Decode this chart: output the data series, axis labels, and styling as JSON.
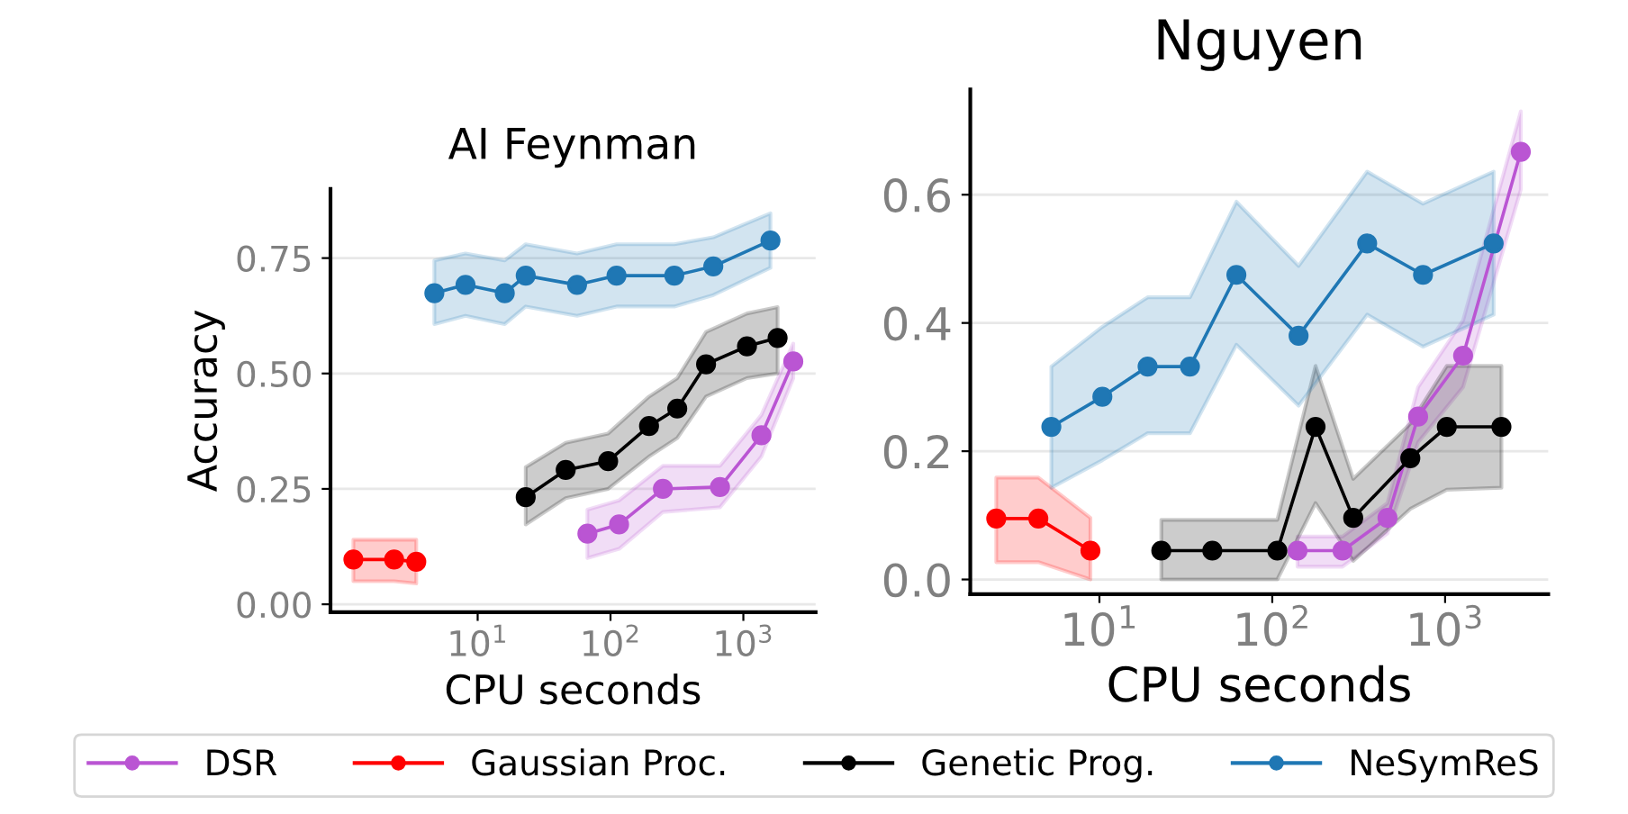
{
  "chart_data": [
    {
      "type": "line",
      "title": "AI Feynman",
      "xlabel": "CPU seconds",
      "ylabel": "Accuracy",
      "log": "x",
      "xlim": [
        0.78,
        3500
      ],
      "ylim": [
        -0.017,
        0.9
      ],
      "xticks": [
        {
          "value": 10,
          "label": "10$^{1}$"
        },
        {
          "value": 100,
          "label": "10$^{2}$"
        },
        {
          "value": 1000,
          "label": "10$^{3}$"
        }
      ],
      "yticks": [
        {
          "value": 0,
          "label": "0.00"
        },
        {
          "value": 0.25,
          "label": "0.25"
        },
        {
          "value": 0.5,
          "label": "0.50"
        },
        {
          "value": 0.75,
          "label": "0.75"
        }
      ],
      "grid": "y",
      "legend": "bottom",
      "marker": "circle",
      "line_style": "solid",
      "series": [
        {
          "name": "DSR",
          "color": "#ba55d3",
          "x": [
            67,
            116,
            248,
            667,
            1368,
            2377
          ],
          "values": [
            0.153,
            0.173,
            0.25,
            0.254,
            0.366,
            0.526
          ],
          "lower": [
            0.1,
            0.12,
            0.2,
            0.21,
            0.32,
            0.49
          ],
          "upper": [
            0.205,
            0.225,
            0.3,
            0.3,
            0.41,
            0.565
          ]
        },
        {
          "name": "Gaussian Proc.",
          "color": "#ff0000",
          "x": [
            1.16,
            2.35,
            3.45
          ],
          "values": [
            0.097,
            0.097,
            0.092
          ],
          "lower": [
            0.05,
            0.05,
            0.045
          ],
          "upper": [
            0.14,
            0.14,
            0.14
          ]
        },
        {
          "name": "Genetic Prog.",
          "color": "#000000",
          "x": [
            23,
            46,
            96,
            195,
            318,
            524,
            1065,
            1811
          ],
          "values": [
            0.232,
            0.291,
            0.31,
            0.386,
            0.424,
            0.52,
            0.559,
            0.577
          ],
          "lower": [
            0.173,
            0.23,
            0.25,
            0.32,
            0.36,
            0.45,
            0.49,
            0.5
          ],
          "upper": [
            0.297,
            0.35,
            0.37,
            0.45,
            0.49,
            0.59,
            0.63,
            0.644
          ]
        },
        {
          "name": "NeSymReS",
          "color": "#1f77b4",
          "x": [
            4.72,
            8.1,
            16,
            23,
            56,
            111,
            302,
            594,
            1600
          ],
          "values": [
            0.674,
            0.692,
            0.674,
            0.712,
            0.692,
            0.712,
            0.712,
            0.732,
            0.788
          ],
          "lower": [
            0.607,
            0.625,
            0.607,
            0.645,
            0.625,
            0.645,
            0.645,
            0.67,
            0.729
          ],
          "upper": [
            0.745,
            0.76,
            0.745,
            0.78,
            0.76,
            0.78,
            0.78,
            0.795,
            0.847
          ]
        }
      ]
    },
    {
      "type": "line",
      "title": "Nguyen",
      "xlabel": "CPU seconds",
      "log": "x",
      "xlim": [
        1.79,
        3950
      ],
      "ylim": [
        -0.023,
        0.764
      ],
      "xticks": [
        {
          "value": 10,
          "label": "10$^{1}$"
        },
        {
          "value": 100,
          "label": "10$^{2}$"
        },
        {
          "value": 1000,
          "label": "10$^{3}$"
        }
      ],
      "yticks": [
        {
          "value": 0,
          "label": "0.0"
        },
        {
          "value": 0.2,
          "label": "0.2"
        },
        {
          "value": 0.4,
          "label": "0.4"
        },
        {
          "value": 0.6,
          "label": "0.6"
        }
      ],
      "grid": "y",
      "marker": "circle",
      "line_style": "solid",
      "series": [
        {
          "color": "#ba55d3",
          "x": [
            140,
            255,
            464,
            698,
            1271,
            2742
          ],
          "values": [
            0.045,
            0.045,
            0.096,
            0.254,
            0.349,
            0.667
          ],
          "lower": [
            0.02,
            0.02,
            0.072,
            0.214,
            0.3,
            0.608
          ],
          "upper": [
            0.067,
            0.067,
            0.119,
            0.3,
            0.404,
            0.73
          ]
        },
        {
          "color": "#ff0000",
          "x": [
            2.53,
            4.43,
            8.87
          ],
          "values": [
            0.095,
            0.095,
            0.045
          ],
          "lower": [
            0.027,
            0.027,
            0
          ],
          "upper": [
            0.159,
            0.159,
            0.096
          ]
        },
        {
          "color": "#000000",
          "x": [
            22.8,
            45,
            107,
            178,
            294,
            629,
            1023,
            2118
          ],
          "values": [
            0.045,
            0.045,
            0.045,
            0.238,
            0.096,
            0.189,
            0.238,
            0.238
          ],
          "lower": [
            0,
            0,
            0,
            0.119,
            0.029,
            0.11,
            0.14,
            0.143
          ],
          "upper": [
            0.093,
            0.093,
            0.093,
            0.333,
            0.157,
            0.243,
            0.333,
            0.333
          ]
        },
        {
          "color": "#1f77b4",
          "x": [
            5.27,
            10.4,
            19,
            33.4,
            62,
            142,
            354,
            745,
            1910
          ],
          "values": [
            0.238,
            0.285,
            0.332,
            0.332,
            0.475,
            0.38,
            0.524,
            0.475,
            0.524
          ],
          "lower": [
            0.143,
            0.186,
            0.228,
            0.228,
            0.366,
            0.271,
            0.413,
            0.363,
            0.413
          ],
          "upper": [
            0.332,
            0.394,
            0.44,
            0.44,
            0.589,
            0.489,
            0.636,
            0.586,
            0.636
          ]
        }
      ]
    }
  ]
}
